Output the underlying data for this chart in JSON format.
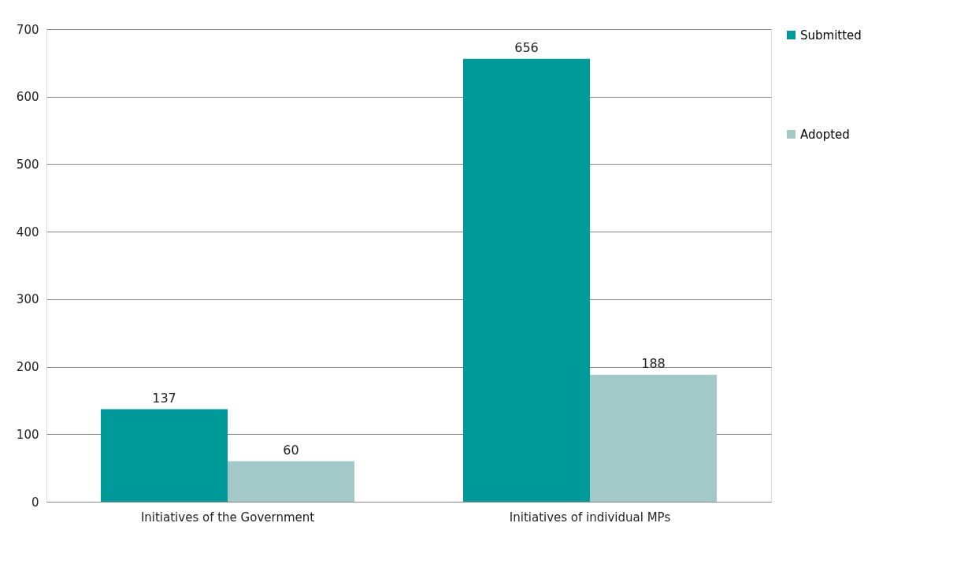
{
  "chart_data": {
    "type": "bar",
    "categories": [
      "Initiatives of the Government",
      "Initiatives of individual MPs"
    ],
    "series": [
      {
        "name": "Submitted",
        "color": "#009a9a",
        "values": [
          137,
          656
        ]
      },
      {
        "name": "Adopted",
        "color": "#a2c9c8",
        "values": [
          60,
          188
        ]
      }
    ],
    "ylim": [
      0,
      700
    ],
    "yticks": [
      0,
      100,
      200,
      300,
      400,
      500,
      600,
      700
    ],
    "grid": "y",
    "legend": "right",
    "data_labels": true
  }
}
